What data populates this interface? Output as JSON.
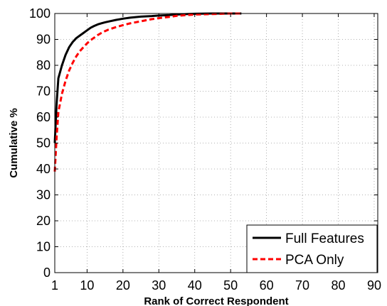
{
  "chart_data": {
    "type": "line",
    "title": "",
    "xlabel": "Rank of Correct Respondent",
    "ylabel": "Cumulative %",
    "xlim": [
      1,
      91
    ],
    "ylim": [
      0,
      100
    ],
    "xticks": [
      1,
      10,
      20,
      30,
      40,
      50,
      60,
      70,
      80,
      90
    ],
    "yticks": [
      0,
      10,
      20,
      30,
      40,
      50,
      60,
      70,
      80,
      90,
      100
    ],
    "grid": true,
    "legend_position": "bottom-right",
    "series": [
      {
        "name": "Full Features",
        "color": "#000000",
        "style": "solid",
        "x": [
          1,
          1.5,
          2,
          3,
          4,
          5,
          6,
          7,
          8,
          9,
          10,
          11,
          12,
          13,
          14,
          15,
          16,
          18,
          20,
          22,
          25,
          28,
          30,
          33,
          35,
          38,
          40,
          45,
          50,
          53
        ],
        "y": [
          50,
          65,
          75,
          80,
          84,
          87,
          89,
          90.5,
          91.5,
          92.5,
          93.5,
          94.5,
          95.2,
          95.8,
          96.2,
          96.6,
          96.9,
          97.5,
          98,
          98.4,
          98.8,
          99,
          99.2,
          99.4,
          99.6,
          99.8,
          99.9,
          100,
          100,
          100
        ]
      },
      {
        "name": "PCA Only",
        "color": "#ff0000",
        "style": "dashed",
        "x": [
          1,
          1.5,
          2,
          3,
          4,
          5,
          6,
          7,
          8,
          9,
          10,
          11,
          12,
          13,
          14,
          15,
          16,
          18,
          20,
          22,
          25,
          28,
          30,
          33,
          35,
          38,
          40,
          45,
          50,
          53
        ],
        "y": [
          39,
          52,
          62,
          69,
          74,
          78,
          81,
          83.5,
          85.5,
          87,
          88.5,
          89.7,
          90.7,
          91.7,
          92.5,
          93.2,
          93.8,
          94.7,
          95.5,
          96.2,
          97,
          97.8,
          98.2,
          98.7,
          99.1,
          99.4,
          99.6,
          99.8,
          100,
          100
        ]
      }
    ]
  }
}
